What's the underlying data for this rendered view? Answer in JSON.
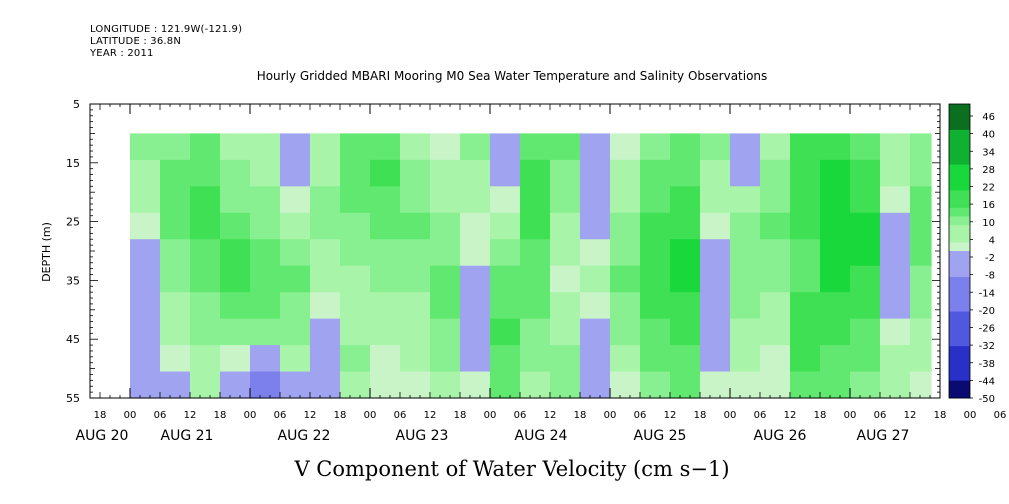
{
  "header": {
    "longitude": "LONGITUDE : 121.9W(-121.9)",
    "latitude": "LATITUDE : 36.8N",
    "year": "YEAR : 2011"
  },
  "chart_data": {
    "type": "heatmap",
    "title": "Hourly Gridded MBARI Mooring M0 Sea Water Temperature and Salinity Observations",
    "xlabel": "V Component of Water Velocity (cm s−1)",
    "ylabel": "DEPTH (m)",
    "ylim": [
      5,
      55
    ],
    "y_inverted": true,
    "y_ticks": [
      5,
      15,
      25,
      35,
      45,
      55
    ],
    "x_hour_tick_labels": [
      "18",
      "00",
      "06",
      "12",
      "18",
      "00",
      "06",
      "12",
      "18",
      "00",
      "06",
      "12",
      "18",
      "00",
      "06",
      "12",
      "18",
      "00",
      "06",
      "12",
      "18",
      "00",
      "06",
      "12",
      "18",
      "00",
      "06",
      "12",
      "18",
      "00",
      "06",
      "12"
    ],
    "x_day_labels": [
      "AUG 20",
      "AUG 21",
      "AUG 22",
      "AUG 23",
      "AUG 24",
      "AUG 25",
      "AUG 26",
      "AUG 27"
    ],
    "data_depth_range": [
      10,
      55
    ],
    "colorbar_labels": [
      "46",
      "40",
      "34",
      "28",
      "22",
      "16",
      "10",
      "4",
      "-2",
      "-8",
      "-14",
      "-20",
      "-26",
      "-32",
      "-38",
      "-44",
      "-50"
    ],
    "colorbar_min": -50,
    "colorbar_max": 50,
    "colors": {
      "negative_light": "#a0a4f0",
      "positive_light": "#a8f4a8",
      "positive_mid": "#60e870",
      "positive_strong": "#18d83c"
    },
    "time_columns": [
      {
        "t": -12,
        "v": [
          0,
          0,
          0,
          0,
          0,
          0,
          0,
          0,
          0,
          0
        ]
      },
      {
        "t": -6,
        "v": [
          0,
          0,
          0,
          0,
          0,
          0,
          0,
          0,
          0,
          0
        ]
      },
      {
        "t": 0,
        "v": [
          8,
          6,
          4,
          2,
          -2,
          -4,
          -4,
          -6,
          -6,
          -4
        ]
      },
      {
        "t": 6,
        "v": [
          10,
          12,
          14,
          12,
          10,
          8,
          6,
          4,
          2,
          -2
        ]
      },
      {
        "t": 12,
        "v": [
          12,
          14,
          16,
          16,
          14,
          12,
          10,
          8,
          6,
          4
        ]
      },
      {
        "t": 18,
        "v": [
          6,
          8,
          10,
          14,
          18,
          16,
          12,
          8,
          2,
          -6
        ]
      },
      {
        "t": 24,
        "v": [
          4,
          6,
          8,
          10,
          12,
          14,
          12,
          8,
          -2,
          -10
        ]
      },
      {
        "t": 30,
        "v": [
          -6,
          -4,
          2,
          6,
          10,
          12,
          10,
          8,
          4,
          -4
        ]
      },
      {
        "t": 36,
        "v": [
          4,
          6,
          8,
          8,
          6,
          4,
          2,
          -2,
          -4,
          -6
        ]
      },
      {
        "t": 42,
        "v": [
          12,
          14,
          12,
          10,
          8,
          6,
          4,
          6,
          8,
          4
        ]
      },
      {
        "t": 48,
        "v": [
          14,
          16,
          14,
          12,
          10,
          8,
          6,
          4,
          2,
          0
        ]
      },
      {
        "t": 54,
        "v": [
          6,
          8,
          10,
          12,
          10,
          8,
          6,
          4,
          4,
          2
        ]
      },
      {
        "t": 60,
        "v": [
          2,
          4,
          6,
          8,
          10,
          12,
          12,
          10,
          8,
          6
        ]
      },
      {
        "t": 66,
        "v": [
          8,
          6,
          4,
          2,
          2,
          -2,
          -4,
          -4,
          -2,
          2
        ]
      },
      {
        "t": 72,
        "v": [
          -4,
          -2,
          2,
          6,
          10,
          12,
          14,
          16,
          14,
          12
        ]
      },
      {
        "t": 78,
        "v": [
          14,
          16,
          18,
          16,
          14,
          12,
          12,
          10,
          8,
          6
        ]
      },
      {
        "t": 84,
        "v": [
          12,
          10,
          8,
          6,
          4,
          2,
          4,
          6,
          8,
          10
        ]
      },
      {
        "t": 90,
        "v": [
          -6,
          -6,
          -4,
          -2,
          2,
          4,
          2,
          -4,
          -6,
          -4
        ]
      },
      {
        "t": 96,
        "v": [
          2,
          4,
          6,
          8,
          10,
          12,
          10,
          8,
          4,
          2
        ]
      },
      {
        "t": 102,
        "v": [
          10,
          12,
          14,
          16,
          18,
          18,
          16,
          14,
          12,
          10
        ]
      },
      {
        "t": 108,
        "v": [
          12,
          14,
          16,
          18,
          20,
          20,
          18,
          16,
          14,
          12
        ]
      },
      {
        "t": 114,
        "v": [
          8,
          6,
          4,
          2,
          -2,
          -4,
          -6,
          -4,
          -2,
          2
        ]
      },
      {
        "t": 120,
        "v": [
          -4,
          -2,
          4,
          8,
          10,
          10,
          8,
          6,
          4,
          2
        ]
      },
      {
        "t": 126,
        "v": [
          4,
          8,
          10,
          12,
          10,
          8,
          6,
          4,
          2,
          2
        ]
      },
      {
        "t": 132,
        "v": [
          16,
          18,
          18,
          16,
          14,
          14,
          16,
          18,
          16,
          14
        ]
      },
      {
        "t": 138,
        "v": [
          18,
          20,
          22,
          22,
          22,
          20,
          18,
          16,
          14,
          12
        ]
      },
      {
        "t": 144,
        "v": [
          14,
          16,
          18,
          20,
          20,
          18,
          16,
          14,
          12,
          10
        ]
      },
      {
        "t": 150,
        "v": [
          6,
          4,
          2,
          -2,
          -4,
          -4,
          -2,
          2,
          4,
          6
        ]
      },
      {
        "t": 156,
        "v": [
          8,
          10,
          12,
          14,
          12,
          10,
          8,
          6,
          4,
          2
        ]
      },
      {
        "t": 162,
        "v": [
          -2,
          4,
          8,
          10,
          8,
          6,
          4,
          6,
          8,
          10
        ]
      },
      {
        "t": 168,
        "v": [
          10,
          12,
          10,
          8,
          6,
          4,
          2,
          -4,
          -6,
          -8
        ]
      },
      {
        "t": 174,
        "v": [
          6,
          8,
          6,
          2,
          -4,
          -6,
          -8,
          -10,
          -8,
          -6
        ]
      },
      {
        "t": 180,
        "v": [
          -2,
          2,
          4,
          6,
          4,
          2,
          -4,
          -6,
          -6,
          -4
        ]
      }
    ]
  }
}
